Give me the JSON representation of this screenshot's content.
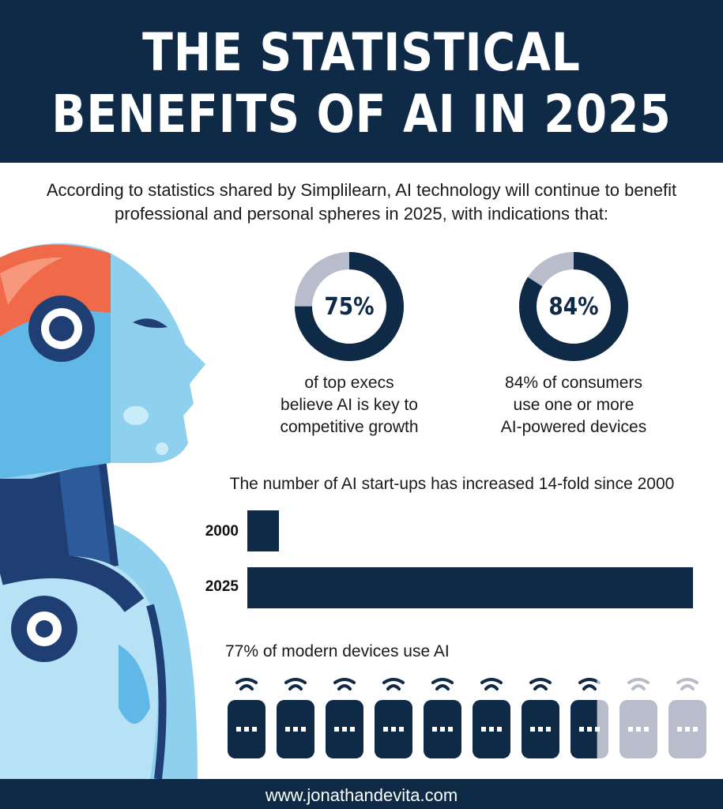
{
  "header": {
    "title_line1": "THE STATISTICAL",
    "title_line2": "BENEFITS OF AI IN 2025"
  },
  "intro": {
    "text": "According to statistics shared by Simplilearn, AI technology will continue to benefit professional and personal spheres in 2025, with indications that:"
  },
  "colors": {
    "navy": "#0f2a47",
    "muted": "#b8bccb",
    "robot_light": "#8fd0ef",
    "robot_mid": "#5fb8e6",
    "robot_accent": "#f06a4a"
  },
  "chart_data": [
    {
      "type": "pie",
      "name": "execs",
      "value": 75,
      "label": "75%",
      "caption_lines": [
        "of top execs",
        "believe AI is key to",
        "competitive growth"
      ]
    },
    {
      "type": "pie",
      "name": "consumers",
      "value": 84,
      "label": "84%",
      "caption_lines": [
        "84% of consumers",
        "use one or more",
        "AI-powered devices"
      ]
    },
    {
      "type": "bar",
      "title": "The number of AI start-ups has increased 14-fold since 2000",
      "categories": [
        "2000",
        "2025"
      ],
      "values": [
        1,
        14
      ]
    },
    {
      "type": "bar",
      "title": "77% of modern devices use AI",
      "value": 77,
      "icon_count": 10,
      "icon_name": "device-icon"
    }
  ],
  "footer": {
    "url": "www.jonathandevita.com"
  }
}
